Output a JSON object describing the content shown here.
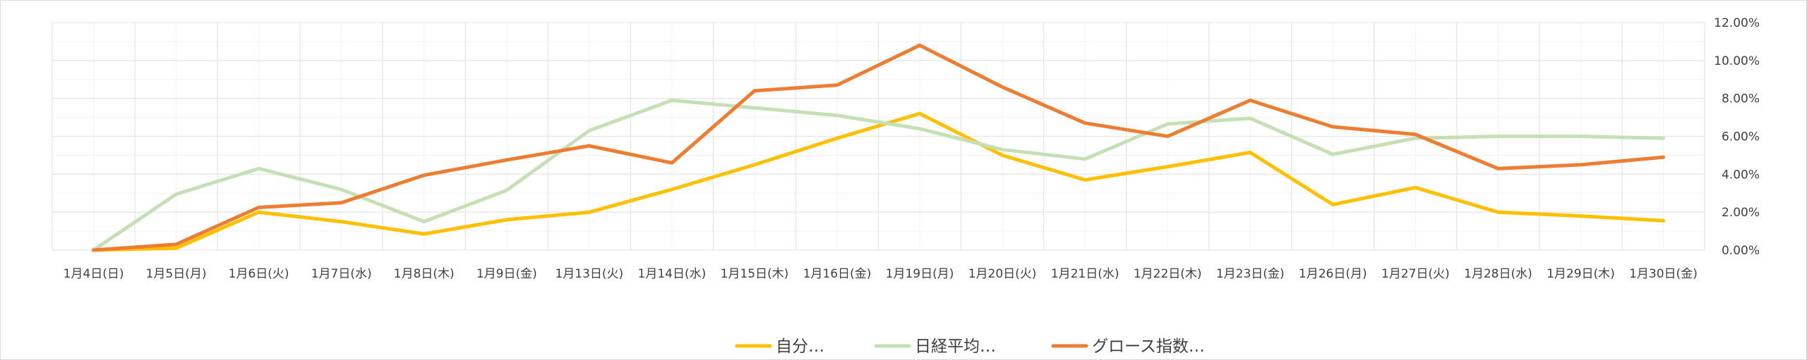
{
  "chart_data": {
    "type": "line",
    "categories": [
      "1月4日(日)",
      "1月5日(月)",
      "1月6日(火)",
      "1月7日(水)",
      "1月8日(木)",
      "1月9日(金)",
      "1月13日(火)",
      "1月14日(水)",
      "1月15日(木)",
      "1月16日(金)",
      "1月19日(月)",
      "1月20日(火)",
      "1月21日(水)",
      "1月22日(木)",
      "1月23日(金)",
      "1月26日(月)",
      "1月27日(火)",
      "1月28日(水)",
      "1月29日(木)",
      "1月30日(金)"
    ],
    "series": [
      {
        "name": "自分…",
        "color": "#FFC000",
        "values": [
          0.0,
          0.1,
          2.0,
          1.5,
          0.85,
          1.6,
          2.0,
          3.2,
          4.5,
          5.9,
          7.2,
          5.0,
          3.7,
          4.4,
          5.15,
          2.4,
          3.3,
          2.0,
          1.8,
          1.55
        ]
      },
      {
        "name": "日経平均…",
        "color": "#C5E0B4",
        "values": [
          0.0,
          2.95,
          4.3,
          3.2,
          1.5,
          3.15,
          6.3,
          7.9,
          7.5,
          7.1,
          6.4,
          5.3,
          4.8,
          6.65,
          6.95,
          5.05,
          5.9,
          6.0,
          6.0,
          5.9
        ]
      },
      {
        "name": "グロース指数…",
        "color": "#ED7D31",
        "values": [
          0.0,
          0.3,
          2.25,
          2.5,
          3.95,
          4.75,
          5.5,
          4.6,
          8.4,
          8.7,
          10.8,
          8.6,
          6.7,
          6.0,
          7.9,
          6.5,
          6.1,
          4.3,
          4.5,
          4.9
        ]
      }
    ],
    "ylim": [
      0,
      12
    ],
    "y_ticks": [
      "0.00%",
      "2.00%",
      "4.00%",
      "6.00%",
      "8.00%",
      "10.00%",
      "12.00%"
    ],
    "y_axis_position": "right",
    "grid": true,
    "legend_position": "bottom",
    "title": "",
    "xlabel": "",
    "ylabel": ""
  }
}
